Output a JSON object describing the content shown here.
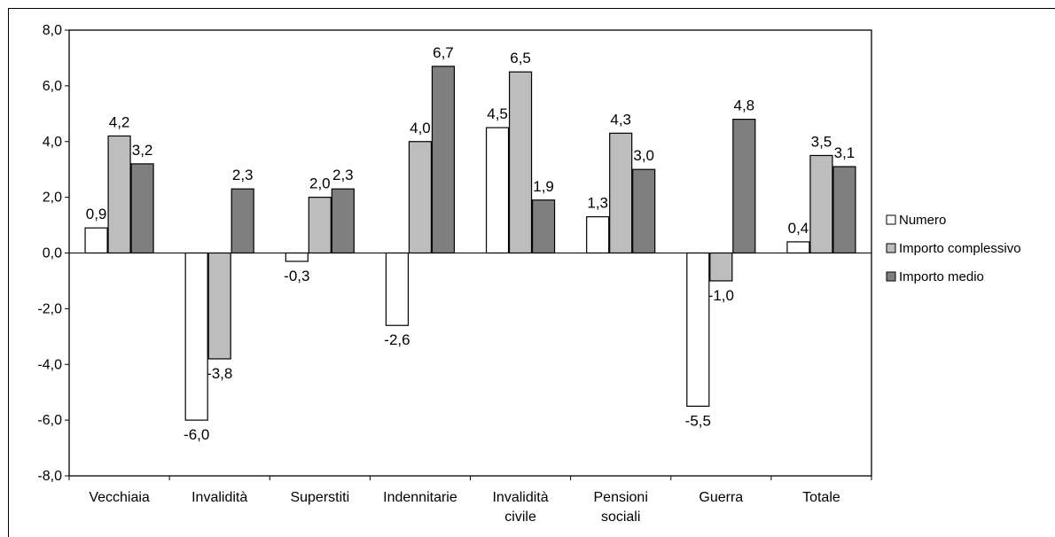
{
  "chart_data": {
    "type": "bar",
    "title": "",
    "xlabel": "",
    "ylabel": "",
    "ylim": [
      -8,
      8
    ],
    "yticks": [
      "8,0",
      "6,0",
      "4,0",
      "2,0",
      "0,0",
      "-2,0",
      "-4,0",
      "-6,0",
      "-8,0"
    ],
    "ytick_values": [
      8,
      6,
      4,
      2,
      0,
      -2,
      -4,
      -6,
      -8
    ],
    "categories": [
      [
        "Vecchiaia"
      ],
      [
        "Invalidità"
      ],
      [
        "Superstiti"
      ],
      [
        "Indennitarie"
      ],
      [
        "Invalidità",
        "civile"
      ],
      [
        "Pensioni",
        "sociali"
      ],
      [
        "Guerra"
      ],
      [
        "Totale"
      ]
    ],
    "series": [
      {
        "name": "Numero",
        "color": "#ffffff",
        "values": [
          0.9,
          -6.0,
          -0.3,
          -2.6,
          4.5,
          1.3,
          -5.5,
          0.4
        ],
        "labels": [
          "0,9",
          "-6,0",
          "-0,3",
          "-2,6",
          "4,5",
          "1,3",
          "-5,5",
          "0,4"
        ]
      },
      {
        "name": "Importo complessivo",
        "color": "#bdbdbd",
        "values": [
          4.2,
          -3.8,
          2.0,
          4.0,
          6.5,
          4.3,
          -1.0,
          3.5
        ],
        "labels": [
          "4,2",
          "-3,8",
          "2,0",
          "4,0",
          "6,5",
          "4,3",
          "-1,0",
          "3,5"
        ]
      },
      {
        "name": "Importo medio",
        "color": "#7f7f7f",
        "values": [
          3.2,
          2.3,
          2.3,
          6.7,
          1.9,
          3.0,
          4.8,
          3.1
        ],
        "labels": [
          "3,2",
          "2,3",
          "2,3",
          "6,7",
          "1,9",
          "3,0",
          "4,8",
          "3,1"
        ]
      }
    ],
    "grid": false,
    "legend_position": "right"
  }
}
